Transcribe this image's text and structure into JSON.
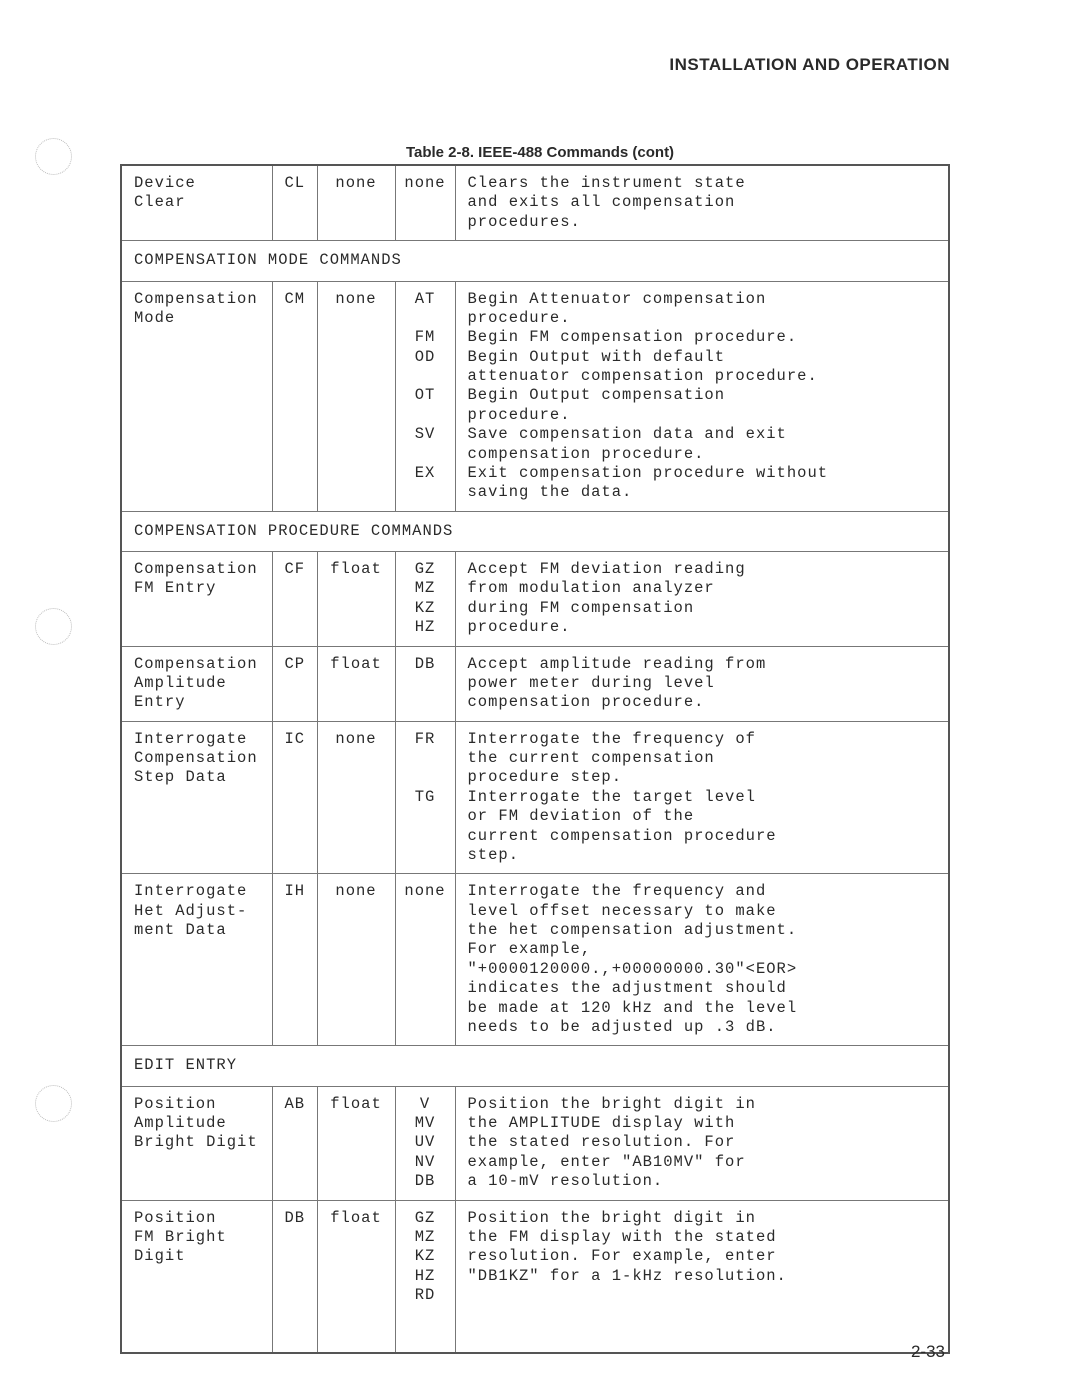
{
  "header": "INSTALLATION AND OPERATION",
  "caption": "Table 2-8. IEEE-488 Commands (cont)",
  "page_number": "2-33",
  "rows": [
    {
      "type": "data",
      "name": "Device\nClear",
      "mnem": "CL",
      "arg": "none",
      "suffixes": [
        "none"
      ],
      "desc": [
        "Clears the instrument state",
        "and exits all compensation",
        "procedures."
      ]
    },
    {
      "type": "section",
      "label": "COMPENSATION MODE COMMANDS"
    },
    {
      "type": "data",
      "name": "Compensation\nMode",
      "mnem": "CM",
      "arg": "none",
      "suffixes": [
        "AT",
        "",
        "FM",
        "OD",
        "",
        "OT",
        "",
        "SV",
        "",
        "EX"
      ],
      "desc": [
        "Begin Attenuator compensation",
        "procedure.",
        "Begin FM compensation procedure.",
        "Begin Output with default",
        "attenuator compensation procedure.",
        "Begin Output compensation",
        "procedure.",
        "Save compensation data and exit",
        "compensation procedure.",
        "Exit compensation procedure without",
        "saving the data."
      ]
    },
    {
      "type": "section",
      "label": "COMPENSATION PROCEDURE COMMANDS"
    },
    {
      "type": "data",
      "name": "Compensation\nFM Entry",
      "mnem": "CF",
      "arg": "float",
      "suffixes": [
        "GZ",
        "MZ",
        "KZ",
        "HZ"
      ],
      "desc": [
        "Accept FM deviation reading",
        "from modulation analyzer",
        "during FM compensation",
        "procedure."
      ]
    },
    {
      "type": "data",
      "name": "Compensation\nAmplitude\nEntry",
      "mnem": "CP",
      "arg": "float",
      "suffixes": [
        "DB"
      ],
      "desc": [
        "Accept amplitude reading from",
        "power meter during level",
        "compensation procedure."
      ]
    },
    {
      "type": "data",
      "name": "Interrogate\nCompensation\nStep Data",
      "mnem": "IC",
      "arg": "none",
      "suffixes": [
        "FR",
        "",
        "",
        "TG"
      ],
      "desc": [
        "Interrogate the frequency of",
        "the current compensation",
        "procedure step.",
        "Interrogate the target level",
        "or FM deviation of the",
        "current compensation procedure",
        "step."
      ]
    },
    {
      "type": "data",
      "name": "Interrogate\nHet Adjust-\nment Data",
      "mnem": "IH",
      "arg": "none",
      "suffixes": [
        "none"
      ],
      "desc": [
        "Interrogate the frequency and",
        "level offset necessary to make",
        "the het compensation adjustment.",
        "For example,",
        "\"+0000120000.,+00000000.30\"<EOR>",
        "indicates the adjustment should",
        "be made at 120 kHz and the level",
        "needs to be adjusted up .3 dB."
      ]
    },
    {
      "type": "section",
      "label": "EDIT ENTRY"
    },
    {
      "type": "data",
      "name": "Position\nAmplitude\nBright Digit",
      "mnem": "AB",
      "arg": "float",
      "suffixes": [
        "V",
        "MV",
        "UV",
        "NV",
        "DB"
      ],
      "desc": [
        "Position the bright digit in",
        "the AMPLITUDE display with",
        "the stated resolution. For",
        "example, enter \"AB10MV\" for",
        "a 10-mV resolution."
      ]
    },
    {
      "type": "data",
      "name": "Position\nFM Bright\nDigit",
      "mnem": "DB",
      "arg": "float",
      "suffixes": [
        "GZ",
        "MZ",
        "KZ",
        "HZ",
        "RD",
        "",
        ""
      ],
      "desc": [
        "Position the bright digit in",
        "the FM display with the stated",
        "resolution. For example, enter",
        "\"DB1KZ\" for a 1-kHz resolution.",
        "",
        "",
        ""
      ]
    }
  ]
}
